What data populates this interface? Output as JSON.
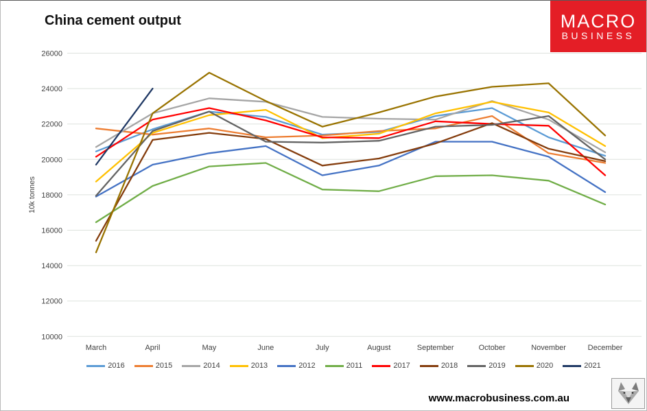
{
  "header": {
    "title": "China cement output"
  },
  "logo": {
    "line1": "MACRO",
    "line2": "BUSINESS",
    "bg_color": "#E41E26",
    "text_color": "#FFFFFF"
  },
  "footer": {
    "url": "www.macrobusiness.com.au",
    "wolf_icon": "wolf-logo"
  },
  "chart_data": {
    "type": "line",
    "title": "China cement output",
    "xlabel": "",
    "ylabel": "10k tonnes",
    "ylim": [
      10000,
      26000
    ],
    "ytick_step": 2000,
    "grid": true,
    "legend_position": "bottom",
    "axis_text_color": "#404040",
    "gridline_color": "#dde2dd",
    "categories": [
      "March",
      "April",
      "May",
      "June",
      "July",
      "August",
      "September",
      "October",
      "November",
      "December"
    ],
    "series": [
      {
        "name": "2016",
        "color": "#5B9BD5",
        "values": [
          20450,
          21700,
          22700,
          22400,
          21400,
          21550,
          22450,
          22900,
          21250,
          20200
        ]
      },
      {
        "name": "2015",
        "color": "#ED7D31",
        "values": [
          21750,
          21400,
          21750,
          21250,
          21350,
          21600,
          21750,
          22450,
          20350,
          19800
        ]
      },
      {
        "name": "2014",
        "color": "#A5A5A5",
        "values": [
          20700,
          22600,
          23450,
          23250,
          22400,
          22300,
          22250,
          23300,
          22250,
          20400
        ]
      },
      {
        "name": "2013",
        "color": "#FFC000",
        "values": [
          18750,
          21500,
          22500,
          22800,
          21200,
          21450,
          22600,
          23250,
          22650,
          20750
        ]
      },
      {
        "name": "2012",
        "color": "#4472C4",
        "values": [
          17900,
          19700,
          20350,
          20750,
          19100,
          19650,
          21000,
          21000,
          20150,
          18150
        ]
      },
      {
        "name": "2011",
        "color": "#70AD47",
        "values": [
          16450,
          18500,
          19600,
          19800,
          18300,
          18200,
          19050,
          19100,
          18800,
          17450
        ]
      },
      {
        "name": "2017",
        "color": "#FF0000",
        "values": [
          20150,
          22250,
          22900,
          22200,
          21250,
          21200,
          22150,
          22000,
          21900,
          19100
        ]
      },
      {
        "name": "2018",
        "color": "#843C0C",
        "values": [
          15400,
          21100,
          21500,
          21150,
          19650,
          20050,
          20900,
          22050,
          20600,
          19900
        ]
      },
      {
        "name": "2019",
        "color": "#636363",
        "values": [
          17950,
          21600,
          22700,
          21000,
          20950,
          21050,
          21850,
          21950,
          22450,
          20000
        ]
      },
      {
        "name": "2020",
        "color": "#997300",
        "values": [
          14750,
          22600,
          24900,
          23300,
          21850,
          22650,
          23550,
          24100,
          24300,
          21350
        ]
      },
      {
        "name": "2021",
        "color": "#1F3864",
        "values": [
          19700,
          24000,
          null,
          null,
          null,
          null,
          null,
          null,
          null,
          null
        ]
      }
    ]
  }
}
